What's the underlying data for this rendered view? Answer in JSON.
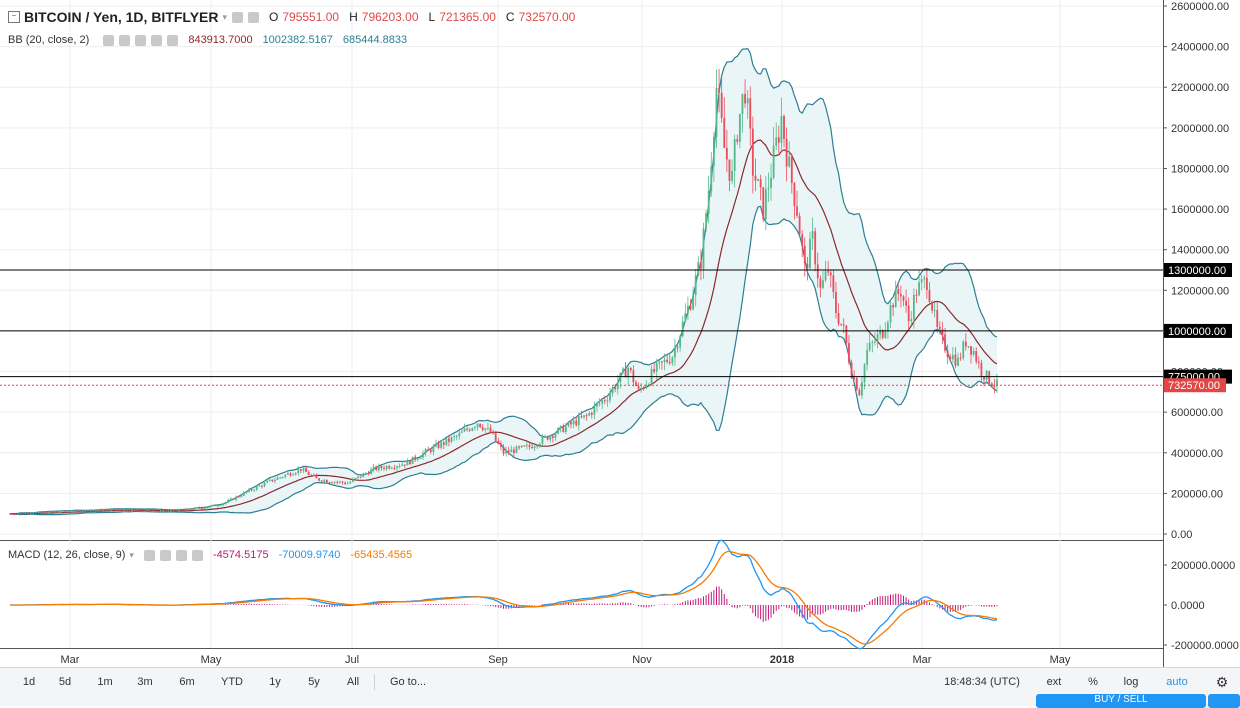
{
  "legend": {
    "symbol": "BITCOIN / Yen, 1D, BITFLYER",
    "open": "795551.00",
    "high": "796203.00",
    "low": "721365.00",
    "close": "732570.00",
    "bb_label": "BB (20, close, 2)",
    "bb_values": [
      "843913.7000",
      "1002382.5167",
      "685444.8833"
    ],
    "macd_label": "MACD (12, 26, close, 9)",
    "macd_values": [
      "-4574.5175",
      "-70009.9740",
      "-65435.4565"
    ]
  },
  "toolbar": {
    "ranges": [
      "1d",
      "5d",
      "1m",
      "3m",
      "6m",
      "YTD",
      "1y",
      "5y",
      "All"
    ],
    "goto": "Go to...",
    "time": "18:48:34 (UTC)",
    "ext": "ext",
    "pct": "%",
    "log": "log",
    "auto": "auto",
    "trade_button": "BUY / SELL"
  },
  "colors": {
    "up": "#53b987",
    "down": "#eb4d5c",
    "bb_band": "#2b7f93",
    "bb_basis": "#8b2a2a",
    "bb_fill": "#e8f4f7",
    "macd_line": "#2196f3",
    "signal_line": "#f57c00",
    "hist": "#c2187a",
    "price_tag": "#e04848",
    "level_line": "#000000"
  },
  "chart_data": [
    {
      "type": "candlestick",
      "title": "BITCOIN / Yen, 1D, BITFLYER",
      "ylim": [
        0,
        2600000
      ],
      "y_ticks": [
        "0.00",
        "200000.00",
        "400000.00",
        "600000.00",
        "800000.00",
        "1000000.00",
        "1200000.00",
        "1400000.00",
        "1600000.00",
        "1800000.00",
        "2000000.00",
        "2200000.00",
        "2400000.00",
        "2600000.00"
      ],
      "x_ticks": [
        "Mar",
        "May",
        "Jul",
        "Sep",
        "Nov",
        "2018",
        "Mar",
        "May"
      ],
      "price_path": [
        [
          0,
          100000
        ],
        [
          40,
          120000
        ],
        [
          60,
          110000
        ],
        [
          75,
          130000
        ],
        [
          82,
          150000
        ],
        [
          90,
          200000
        ],
        [
          100,
          260000
        ],
        [
          112,
          320000
        ],
        [
          118,
          270000
        ],
        [
          130,
          250000
        ],
        [
          140,
          320000
        ],
        [
          153,
          350000
        ],
        [
          158,
          390000
        ],
        [
          172,
          480000
        ],
        [
          180,
          550000
        ],
        [
          185,
          500000
        ],
        [
          190,
          400000
        ],
        [
          200,
          430000
        ],
        [
          210,
          500000
        ],
        [
          222,
          580000
        ],
        [
          230,
          680000
        ],
        [
          238,
          820000
        ],
        [
          242,
          700000
        ],
        [
          248,
          800000
        ],
        [
          255,
          880000
        ],
        [
          262,
          1150000
        ],
        [
          266,
          1350000
        ],
        [
          269,
          1700000
        ],
        [
          272,
          2200000
        ],
        [
          275,
          1900000
        ],
        [
          278,
          1750000
        ],
        [
          280,
          2000000
        ],
        [
          283,
          2200000
        ],
        [
          286,
          1800000
        ],
        [
          290,
          1600000
        ],
        [
          294,
          1850000
        ],
        [
          297,
          2050000
        ],
        [
          300,
          1800000
        ],
        [
          303,
          1600000
        ],
        [
          306,
          1300000
        ],
        [
          309,
          1450000
        ],
        [
          312,
          1200000
        ],
        [
          315,
          1300000
        ],
        [
          318,
          1100000
        ],
        [
          321,
          1000000
        ],
        [
          324,
          800000
        ],
        [
          327,
          700000
        ],
        [
          330,
          900000
        ],
        [
          333,
          950000
        ],
        [
          336,
          1000000
        ],
        [
          340,
          1150000
        ],
        [
          343,
          1200000
        ],
        [
          346,
          1050000
        ],
        [
          349,
          1200000
        ],
        [
          353,
          1250000
        ],
        [
          357,
          1000000
        ],
        [
          361,
          900000
        ],
        [
          365,
          850000
        ],
        [
          368,
          950000
        ],
        [
          371,
          900000
        ],
        [
          374,
          800000
        ],
        [
          377,
          760000
        ],
        [
          380,
          732570
        ]
      ],
      "levels": [
        {
          "value": 1300000,
          "label": "1300000.00"
        },
        {
          "value": 1000000,
          "label": "1000000.00"
        },
        {
          "value": 775000,
          "label": "775000.00"
        }
      ],
      "last_price": {
        "value": 732570,
        "label": "732570.00"
      },
      "indicator": "Bollinger Bands (20, close, 2)"
    },
    {
      "type": "macd",
      "title": "MACD (12, 26, close, 9)",
      "ylim": [
        -200000,
        300000
      ],
      "y_ticks": [
        "200000.0000",
        "0.0000",
        "-200000.0000"
      ]
    }
  ]
}
